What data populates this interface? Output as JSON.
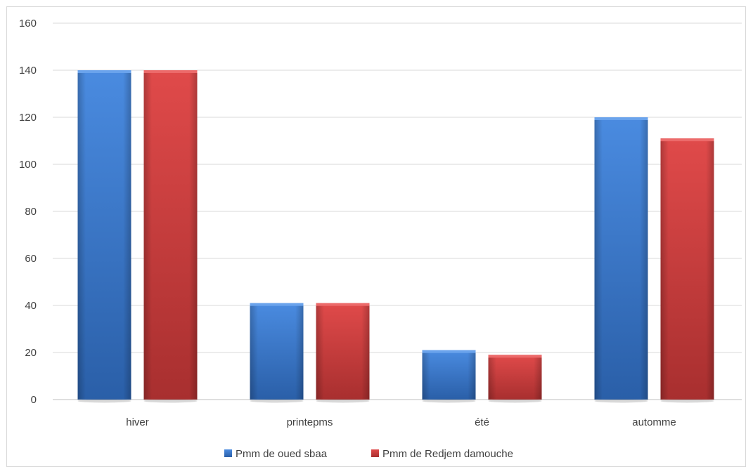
{
  "chart_data": {
    "type": "bar",
    "title": "",
    "xlabel": "",
    "ylabel": "",
    "categories": [
      "hiver",
      "printepms",
      "été",
      "automme"
    ],
    "series": [
      {
        "name": "Pmm de oued sbaa",
        "values": [
          140,
          41,
          21,
          120
        ],
        "color": "#3f7fd0"
      },
      {
        "name": "Pmm de Redjem damouche",
        "values": [
          140,
          41,
          19,
          111
        ],
        "color": "#d64545"
      }
    ],
    "ylim": [
      0,
      160
    ],
    "yticks": [
      0,
      20,
      40,
      60,
      80,
      100,
      120,
      140,
      160
    ],
    "grid": true,
    "legend_position": "bottom"
  }
}
